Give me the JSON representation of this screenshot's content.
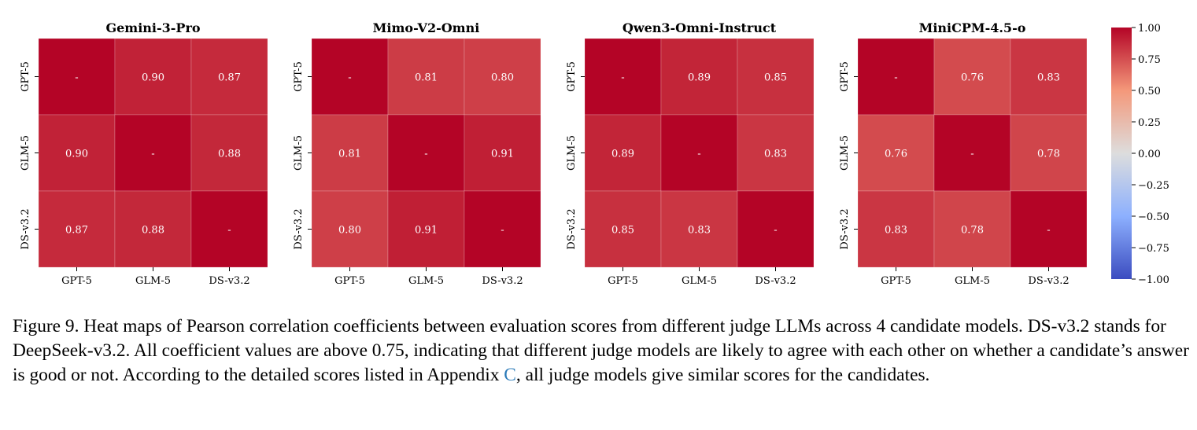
{
  "chart_data": {
    "type": "heatmap",
    "labels": [
      "GPT-5",
      "GLM-5",
      "DS-v3.2"
    ],
    "vmin": -1.0,
    "vmax": 1.0,
    "colormap": "coolwarm",
    "diagonal_label": "-",
    "colorbar_ticks": [
      "1.00",
      "0.75",
      "0.50",
      "0.25",
      "0.00",
      "−0.25",
      "−0.50",
      "−0.75",
      "−1.00"
    ],
    "panels": [
      {
        "title": "Gemini-3-Pro",
        "matrix": [
          [
            1.0,
            0.9,
            0.87
          ],
          [
            0.9,
            1.0,
            0.88
          ],
          [
            0.87,
            0.88,
            1.0
          ]
        ]
      },
      {
        "title": "Mimo-V2-Omni",
        "matrix": [
          [
            1.0,
            0.81,
            0.8
          ],
          [
            0.81,
            1.0,
            0.91
          ],
          [
            0.8,
            0.91,
            1.0
          ]
        ]
      },
      {
        "title": "Qwen3-Omni-Instruct",
        "matrix": [
          [
            1.0,
            0.89,
            0.85
          ],
          [
            0.89,
            1.0,
            0.83
          ],
          [
            0.85,
            0.83,
            1.0
          ]
        ]
      },
      {
        "title": "MiniCPM-4.5-o",
        "matrix": [
          [
            1.0,
            0.76,
            0.83
          ],
          [
            0.76,
            1.0,
            0.78
          ],
          [
            0.83,
            0.78,
            1.0
          ]
        ]
      }
    ]
  },
  "caption": {
    "text_before": "Figure 9. Heat maps of Pearson correlation coefficients between evaluation scores from different judge LLMs across 4 candidate models. DS-v3.2 stands for DeepSeek-v3.2. All coefficient values are above 0.75, indicating that different judge models are likely to agree with each other on whether a candidate’s answer is good or not. According to the detailed scores listed in Appendix ",
    "ref": "C",
    "text_after": ", all judge models give similar scores for the candidates."
  }
}
